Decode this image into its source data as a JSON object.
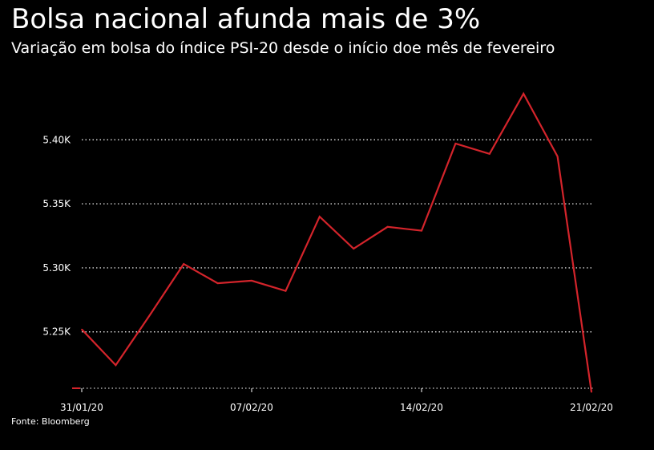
{
  "header": {
    "title": "Bolsa nacional afunda mais de 3%",
    "subtitle": "Variação em bolsa do índice PSI-20 desde o início doe mês de fevereiro"
  },
  "footer": {
    "source": "Fonte: Bloomberg"
  },
  "colors": {
    "background": "#000000",
    "text": "#ffffff",
    "line": "#d4242b",
    "grid": "#ffffff"
  },
  "chart_data": {
    "type": "line",
    "title": "Bolsa nacional afunda mais de 3%",
    "subtitle": "Variação em bolsa do índice PSI-20 desde o início doe mês de fevereiro",
    "xlabel": "",
    "ylabel": "",
    "x": [
      "2020-01-31",
      "2020-02-03",
      "2020-02-04",
      "2020-02-05",
      "2020-02-06",
      "2020-02-07",
      "2020-02-10",
      "2020-02-11",
      "2020-02-12",
      "2020-02-13",
      "2020-02-14",
      "2020-02-17",
      "2020-02-18",
      "2020-02-19",
      "2020-02-20",
      "2020-02-21"
    ],
    "series": [
      {
        "values": [
          5252,
          5224,
          5263,
          5303,
          5288,
          5290,
          5282,
          5340,
          5315,
          5332,
          5329,
          5397,
          5389,
          5436,
          5387,
          5203
        ]
      }
    ],
    "x_ticks": [
      {
        "x": "2020-01-31",
        "label": "31/01/20"
      },
      {
        "x": "2020-02-07",
        "label": "07/02/20"
      },
      {
        "x": "2020-02-14",
        "label": "14/02/20"
      },
      {
        "x": "2020-02-21",
        "label": "21/02/20"
      }
    ],
    "y_ticks": [
      {
        "value": 5250,
        "label": "5.25K"
      },
      {
        "value": 5300,
        "label": "5.30K"
      },
      {
        "value": 5350,
        "label": "5.35K"
      },
      {
        "value": 5400,
        "label": "5.40K"
      }
    ],
    "ylim": [
      5206,
      5444
    ],
    "grid": "horizontal-dotted",
    "legend": "none"
  }
}
